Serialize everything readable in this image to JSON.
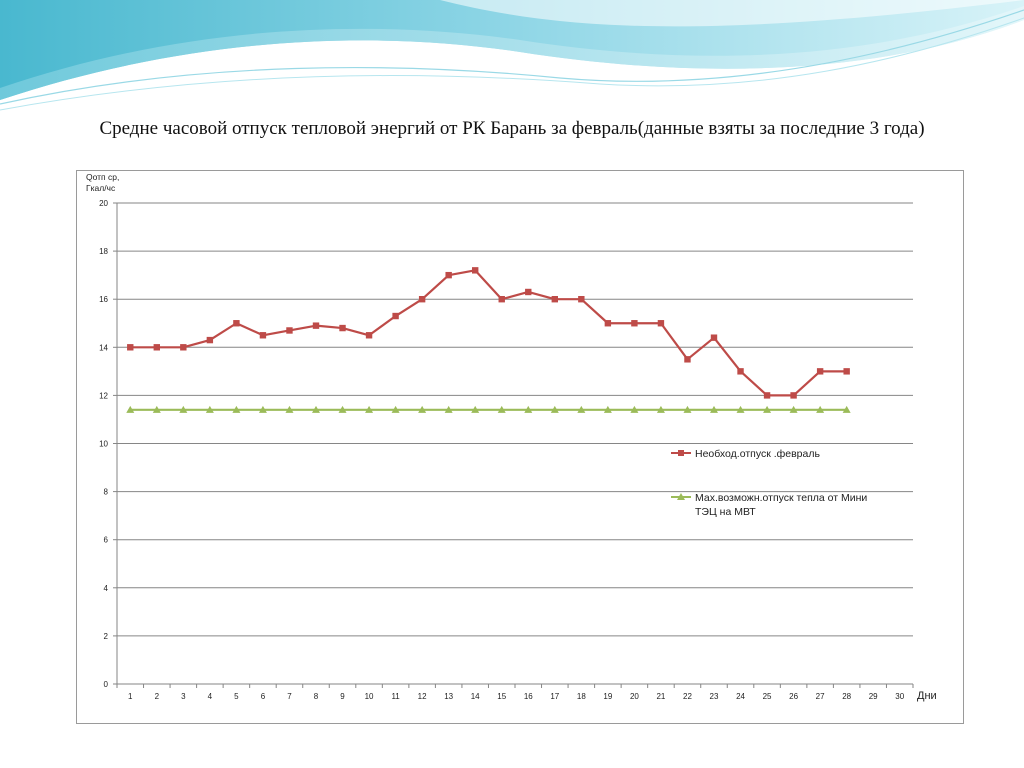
{
  "slide": {
    "title": "Средне часовой отпуск тепловой энергий от РК Барань за февраль(данные взяты за последние 3 года)"
  },
  "colors": {
    "series1": "#be4b48",
    "series2": "#9bbb59",
    "grid": "#868686",
    "deco_dark": "#5fc6d9",
    "deco_light": "#bfe9f1"
  },
  "chart_data": {
    "type": "line",
    "ylabel_lines": [
      "Qотп ср,",
      "Гкал/чс"
    ],
    "xlabel": "Дни",
    "x_categories": [
      "1",
      "2",
      "3",
      "4",
      "5",
      "6",
      "7",
      "8",
      "9",
      "10",
      "11",
      "12",
      "13",
      "14",
      "15",
      "16",
      "17",
      "18",
      "19",
      "20",
      "21",
      "22",
      "23",
      "24",
      "25",
      "26",
      "27",
      "28",
      "29",
      "30"
    ],
    "y_ticks": [
      "0",
      "2",
      "4",
      "6",
      "8",
      "10",
      "12",
      "14",
      "16",
      "18",
      "20"
    ],
    "ylim": [
      0,
      20
    ],
    "grid": true,
    "legend_position": "right",
    "series": [
      {
        "name": "Необход.отпуск .февраль",
        "marker": "square",
        "values": [
          14.0,
          14.0,
          14.0,
          14.3,
          15.0,
          14.5,
          14.7,
          14.9,
          14.8,
          14.5,
          15.3,
          16.0,
          17.0,
          17.2,
          16.0,
          16.3,
          16.0,
          16.0,
          15.0,
          15.0,
          15.0,
          13.5,
          14.4,
          13.0,
          12.0,
          12.0,
          13.0,
          13.0
        ]
      },
      {
        "name_lines": [
          "Мах.возможн.отпуск тепла от Мини",
          "ТЭЦ на МВТ"
        ],
        "marker": "triangle",
        "values": [
          11.4,
          11.4,
          11.4,
          11.4,
          11.4,
          11.4,
          11.4,
          11.4,
          11.4,
          11.4,
          11.4,
          11.4,
          11.4,
          11.4,
          11.4,
          11.4,
          11.4,
          11.4,
          11.4,
          11.4,
          11.4,
          11.4,
          11.4,
          11.4,
          11.4,
          11.4,
          11.4,
          11.4
        ]
      }
    ]
  }
}
